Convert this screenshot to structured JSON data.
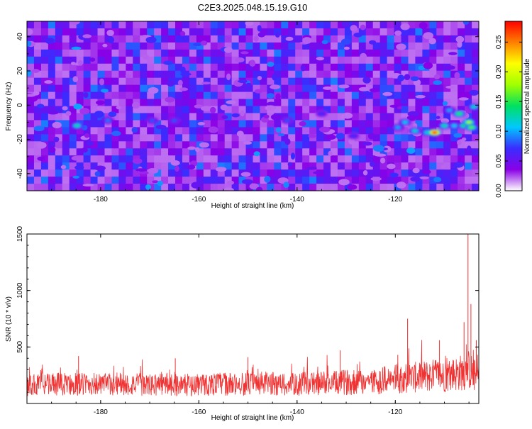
{
  "figure": {
    "title": "C2E3.2025.048.15.19.G10"
  },
  "chart_data": [
    {
      "type": "heatmap",
      "title": "C2E3.2025.048.15.19.G10",
      "xlabel": "Height of straight line (km)",
      "ylabel": "Frequency (Hz)",
      "xlim": [
        -195,
        -103
      ],
      "ylim": [
        -50,
        49
      ],
      "x_ticks": [
        -180,
        -160,
        -140,
        -120
      ],
      "x_tick_labels": [
        "-180",
        "-160",
        "-140",
        "-120"
      ],
      "y_ticks": [
        -40,
        -20,
        0,
        20,
        40
      ],
      "y_tick_labels": [
        "-40",
        "-20",
        "0",
        "20",
        "40"
      ],
      "colorbar": {
        "label": "Normalized spectral amplitude",
        "range": [
          0,
          0.285
        ],
        "ticks": [
          0.0,
          0.05,
          0.1,
          0.15,
          0.2,
          0.25
        ],
        "tick_labels": [
          "0.00",
          "0.05",
          "0.10",
          "0.15",
          "0.20",
          "0.25"
        ],
        "colormap": [
          "#ffffff",
          "#8a00e6",
          "#3a2cff",
          "#00c8ff",
          "#00e060",
          "#a0ff00",
          "#ffff00",
          "#ff8000",
          "#ff0000"
        ]
      },
      "hotspots": [
        {
          "x": -184.8,
          "y": -12,
          "value": 0.13
        },
        {
          "x": -178.5,
          "y": -9,
          "value": 0.09
        },
        {
          "x": -169.5,
          "y": -9,
          "value": 0.08
        },
        {
          "x": -165.0,
          "y": -9,
          "value": 0.08
        },
        {
          "x": -142.0,
          "y": -9,
          "value": 0.08
        },
        {
          "x": -135.0,
          "y": -5,
          "value": 0.07
        },
        {
          "x": -128.5,
          "y": -18,
          "value": 0.07
        },
        {
          "x": -119.5,
          "y": -13,
          "value": 0.1
        },
        {
          "x": -118.0,
          "y": -10,
          "value": 0.11
        },
        {
          "x": -116.0,
          "y": -15,
          "value": 0.12
        },
        {
          "x": -113.5,
          "y": -16,
          "value": 0.12
        },
        {
          "x": -112.0,
          "y": -16,
          "value": 0.28
        },
        {
          "x": -110.0,
          "y": -12,
          "value": 0.13
        },
        {
          "x": -108.0,
          "y": -12,
          "value": 0.11
        },
        {
          "x": -107.0,
          "y": -5,
          "value": 0.15
        },
        {
          "x": -106.0,
          "y": -12,
          "value": 0.14
        },
        {
          "x": -105.0,
          "y": -10,
          "value": 0.18
        },
        {
          "x": -104.5,
          "y": -13,
          "value": 0.16
        },
        {
          "x": -104.0,
          "y": -1,
          "value": 0.12
        },
        {
          "x": -109.0,
          "y": -3,
          "value": 0.1
        }
      ],
      "background_level": 0.02
    },
    {
      "type": "line",
      "xlabel": "Height of straight line (km)",
      "ylabel": "SNR (10 * v/v)",
      "xlim": [
        -195,
        -103
      ],
      "ylim": [
        0,
        1500
      ],
      "x_ticks": [
        -180,
        -160,
        -140,
        -120
      ],
      "x_tick_labels": [
        "-180",
        "-160",
        "-140",
        "-120"
      ],
      "y_ticks": [
        500,
        1000,
        1500
      ],
      "y_tick_labels": [
        "500",
        "1000",
        "1500"
      ],
      "series": [
        {
          "color": "#f03232",
          "x": [
            -195,
            -192,
            -190,
            -188,
            -186,
            -184,
            -182,
            -180,
            -178,
            -176,
            -174,
            -172,
            -170,
            -168,
            -166,
            -164,
            -162,
            -160,
            -158,
            -156,
            -154,
            -152,
            -150,
            -148,
            -146,
            -144,
            -142,
            -140,
            -138,
            -136,
            -134,
            -132,
            -130,
            -128,
            -126,
            -124,
            -122,
            -120,
            -118,
            -116,
            -114,
            -112,
            -110,
            -108,
            -106,
            -105,
            -104,
            -103
          ],
          "values": [
            160,
            170,
            175,
            165,
            180,
            170,
            175,
            165,
            170,
            175,
            165,
            170,
            160,
            170,
            175,
            165,
            160,
            170,
            165,
            175,
            170,
            165,
            170,
            175,
            180,
            170,
            175,
            165,
            180,
            175,
            185,
            180,
            190,
            185,
            200,
            195,
            210,
            215,
            225,
            230,
            240,
            250,
            240,
            260,
            280,
            300,
            250,
            240
          ]
        }
      ],
      "spikes": [
        {
          "x": -184.5,
          "y": 420
        },
        {
          "x": -164.8,
          "y": 400
        },
        {
          "x": -150.0,
          "y": 410
        },
        {
          "x": -131.2,
          "y": 470
        },
        {
          "x": -119.5,
          "y": 430
        },
        {
          "x": -117.5,
          "y": 750
        },
        {
          "x": -111.0,
          "y": 560
        },
        {
          "x": -106.0,
          "y": 720
        },
        {
          "x": -105.2,
          "y": 1520
        },
        {
          "x": -104.6,
          "y": 880
        },
        {
          "x": -103.5,
          "y": 560
        }
      ]
    }
  ]
}
